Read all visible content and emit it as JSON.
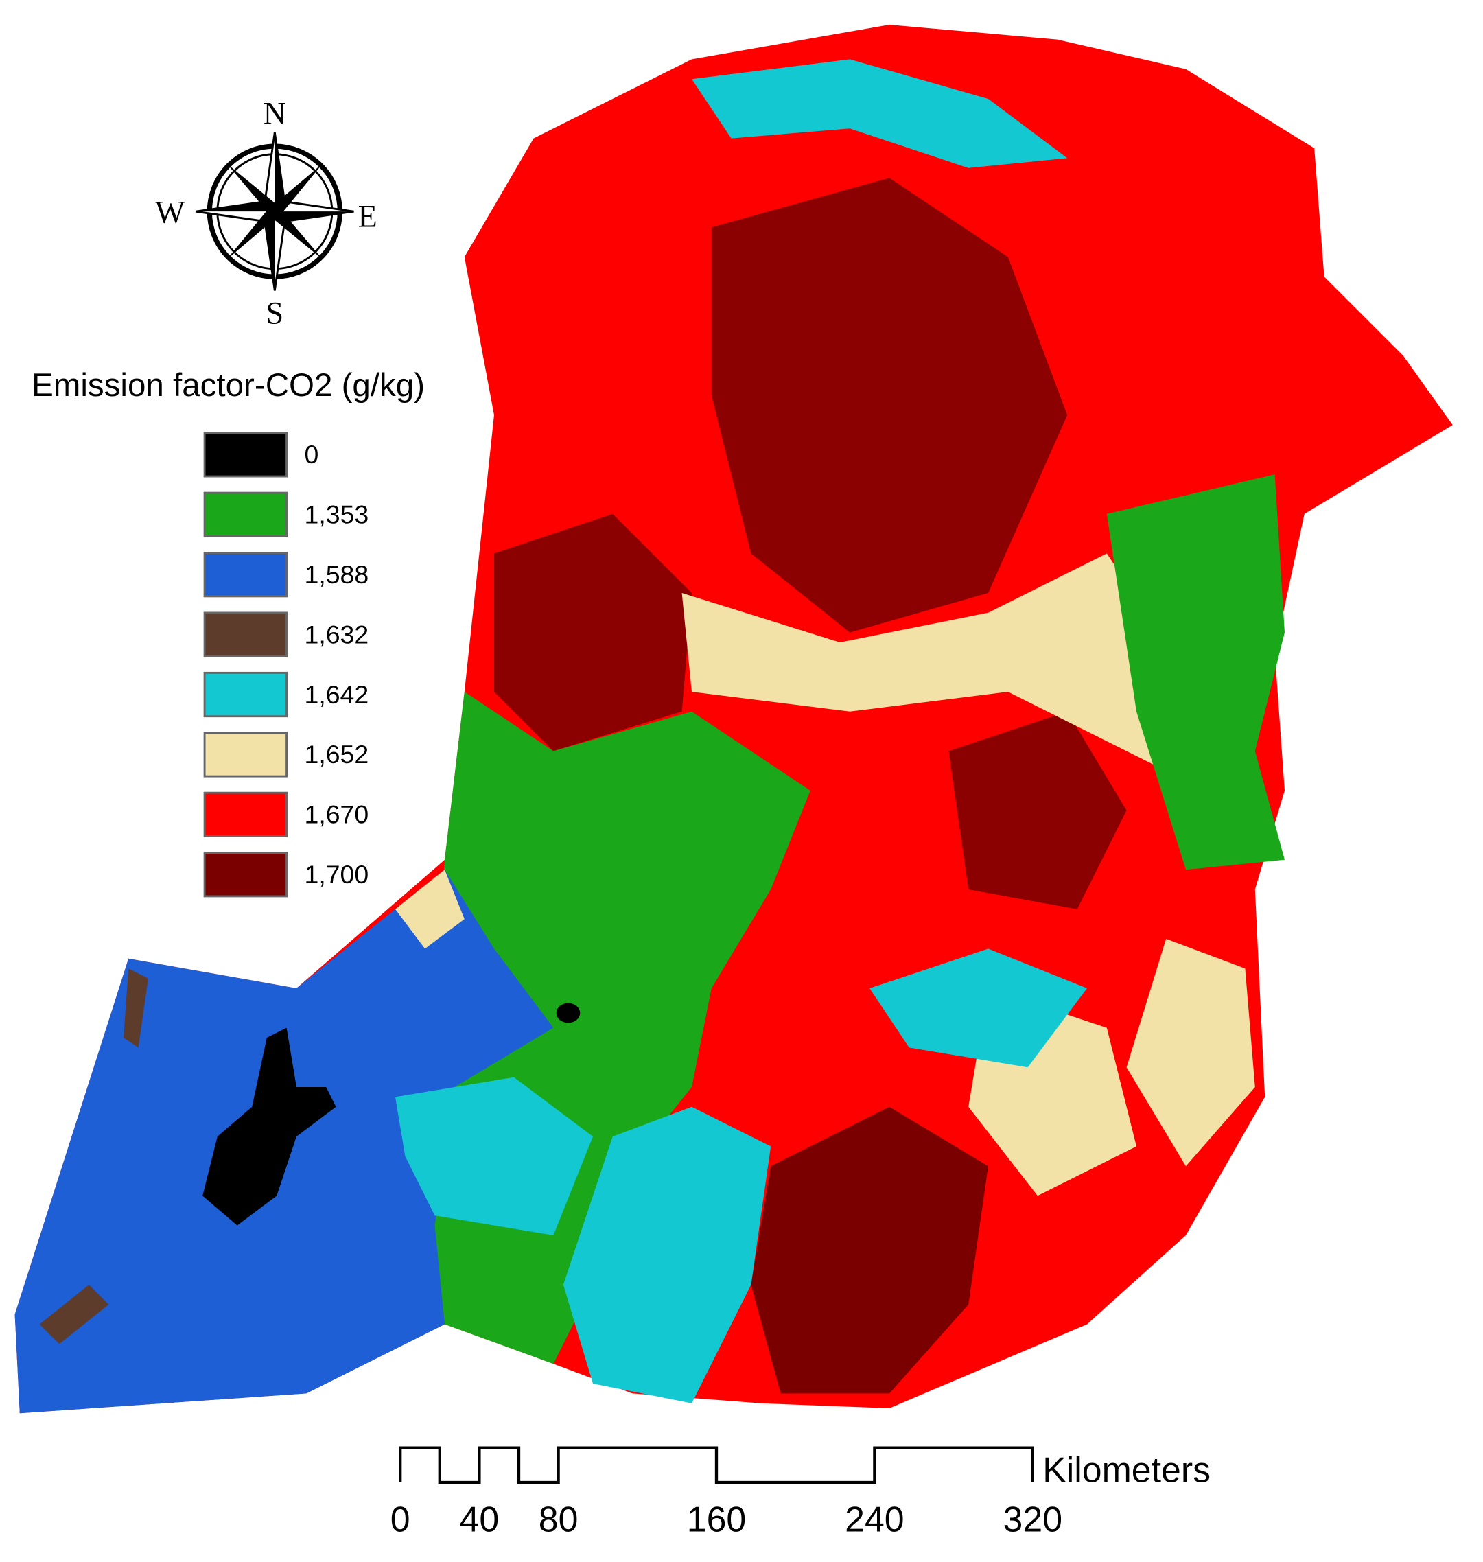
{
  "compass": {
    "north": "N",
    "south": "S",
    "east": "E",
    "west": "W"
  },
  "legend": {
    "title": "Emission factor-CO2 (g/kg)",
    "items": [
      {
        "label": "0",
        "color": "#000000"
      },
      {
        "label": "1,353",
        "color": "#1aa81a"
      },
      {
        "label": "1,588",
        "color": "#1f5fd6"
      },
      {
        "label": "1,632",
        "color": "#5e3c2c"
      },
      {
        "label": "1,642",
        "color": "#14c8d2"
      },
      {
        "label": "1,652",
        "color": "#f2e2a8"
      },
      {
        "label": "1,670",
        "color": "#ff0000"
      },
      {
        "label": "1,700",
        "color": "#7a0000"
      }
    ]
  },
  "scale_bar": {
    "unit": "Kilometers",
    "ticks": [
      0,
      40,
      80,
      160,
      240,
      320
    ]
  }
}
